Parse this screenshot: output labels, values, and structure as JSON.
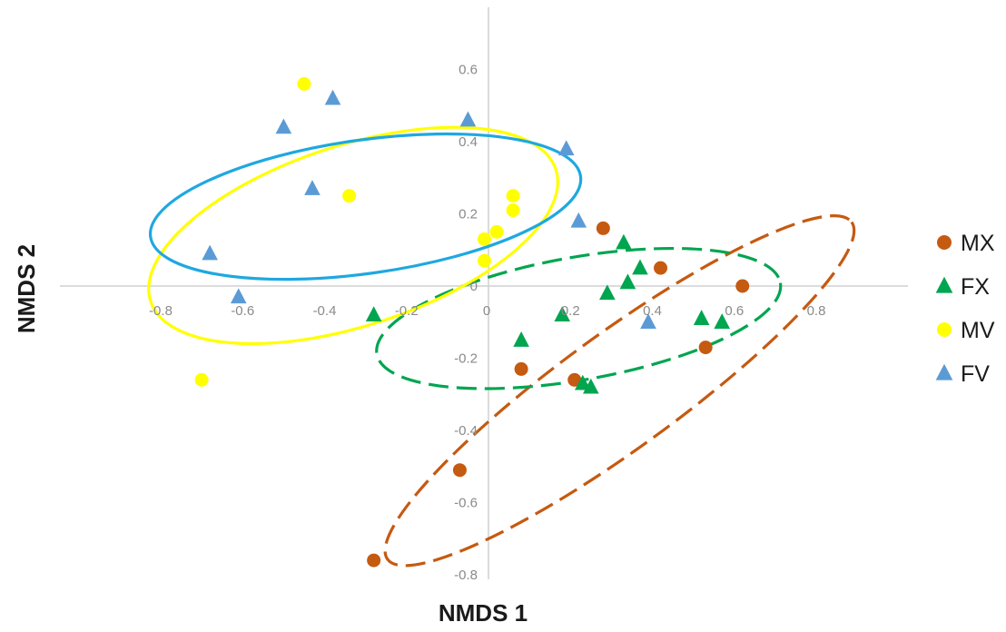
{
  "chart_data": {
    "type": "scatter",
    "title": "",
    "xlabel": "NMDS 1",
    "ylabel": "NMDS 2",
    "xlim": [
      -0.8,
      0.8
    ],
    "ylim": [
      -0.8,
      0.6
    ],
    "x_ticks": [
      {
        "value": -0.8,
        "label": "-0.8"
      },
      {
        "value": -0.6,
        "label": "-0.6"
      },
      {
        "value": -0.4,
        "label": "-0.4"
      },
      {
        "value": -0.2,
        "label": "-0.2"
      },
      {
        "value": 0,
        "label": "0"
      },
      {
        "value": 0.2,
        "label": "0.2"
      },
      {
        "value": 0.4,
        "label": "0.4"
      },
      {
        "value": 0.6,
        "label": "0.6"
      },
      {
        "value": 0.8,
        "label": "0.8"
      }
    ],
    "y_ticks": [
      {
        "value": 0.6,
        "label": "0.6"
      },
      {
        "value": 0.4,
        "label": "0.4"
      },
      {
        "value": 0.2,
        "label": "0.2"
      },
      {
        "value": 0,
        "label": "0"
      },
      {
        "value": -0.2,
        "label": "-0.2"
      },
      {
        "value": -0.4,
        "label": "-0.4"
      },
      {
        "value": -0.6,
        "label": "-0.6"
      },
      {
        "value": -0.8,
        "label": "-0.8"
      }
    ],
    "grid": false,
    "legend_position": "right",
    "series": [
      {
        "name": "MX",
        "marker": "circle",
        "color": "#c55a11",
        "points": [
          [
            0.28,
            0.16
          ],
          [
            0.42,
            0.05
          ],
          [
            0.62,
            0.0
          ],
          [
            0.53,
            -0.17
          ],
          [
            0.08,
            -0.23
          ],
          [
            0.21,
            -0.26
          ],
          [
            -0.07,
            -0.51
          ],
          [
            -0.28,
            -0.76
          ]
        ],
        "ellipse": {
          "cx": 0.32,
          "cy": -0.29,
          "rx": 0.7,
          "ry": 0.16,
          "angle_deg": -36,
          "style": "dashed"
        }
      },
      {
        "name": "FX",
        "marker": "triangle",
        "color": "#00a550",
        "points": [
          [
            0.33,
            0.12
          ],
          [
            0.37,
            0.05
          ],
          [
            0.34,
            0.01
          ],
          [
            0.29,
            -0.02
          ],
          [
            0.18,
            -0.08
          ],
          [
            0.52,
            -0.09
          ],
          [
            0.57,
            -0.1
          ],
          [
            0.08,
            -0.15
          ],
          [
            0.23,
            -0.27
          ],
          [
            0.25,
            -0.28
          ],
          [
            -0.28,
            -0.08
          ]
        ],
        "ellipse": {
          "cx": 0.22,
          "cy": -0.09,
          "rx": 0.5,
          "ry": 0.17,
          "angle_deg": -10,
          "style": "dashed"
        }
      },
      {
        "name": "MV",
        "marker": "circle",
        "color": "#ffff00",
        "points": [
          [
            -0.45,
            0.56
          ],
          [
            -0.34,
            0.25
          ],
          [
            0.06,
            0.25
          ],
          [
            0.06,
            0.21
          ],
          [
            0.02,
            0.15
          ],
          [
            -0.01,
            0.13
          ],
          [
            -0.01,
            0.07
          ],
          [
            -0.7,
            -0.26
          ]
        ],
        "ellipse": {
          "cx": -0.33,
          "cy": 0.14,
          "rx": 0.52,
          "ry": 0.25,
          "angle_deg": -18,
          "style": "solid"
        }
      },
      {
        "name": "FV",
        "marker": "triangle",
        "color": "#5b9bd5",
        "points": [
          [
            -0.38,
            0.52
          ],
          [
            -0.05,
            0.46
          ],
          [
            -0.5,
            0.44
          ],
          [
            0.19,
            0.38
          ],
          [
            -0.43,
            0.27
          ],
          [
            0.22,
            0.18
          ],
          [
            -0.68,
            0.09
          ],
          [
            -0.61,
            -0.03
          ],
          [
            0.39,
            -0.1
          ]
        ],
        "ellipse": {
          "cx": -0.3,
          "cy": 0.22,
          "rx": 0.53,
          "ry": 0.185,
          "angle_deg": -8,
          "style": "solid"
        }
      }
    ]
  },
  "ellipse_colors": {
    "MX": "#c55a11",
    "FX": "#00a550",
    "MV": "#ffff00",
    "FV": "#1fa8e0"
  }
}
